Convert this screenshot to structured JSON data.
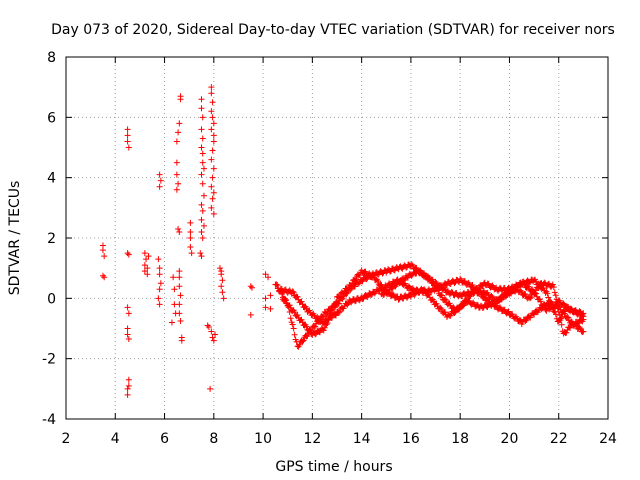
{
  "chart_data": {
    "type": "scatter",
    "title": "Day 073 of 2020, Sidereal Day-to-day VTEC variation (SDTVAR) for receiver nors",
    "xlabel": "GPS time / hours",
    "ylabel": "SDTVAR / TECUs",
    "xlim": [
      2,
      24
    ],
    "ylim": [
      -4,
      8
    ],
    "xticks": [
      2,
      4,
      6,
      8,
      10,
      12,
      14,
      16,
      18,
      20,
      22,
      24
    ],
    "yticks": [
      -4,
      -2,
      0,
      2,
      4,
      6,
      8
    ],
    "grid": true,
    "marker": "+",
    "color": "#ff0000",
    "series": [
      {
        "name": "scatter-points",
        "points": [
          [
            3.5,
            1.75
          ],
          [
            3.5,
            1.6
          ],
          [
            3.55,
            1.4
          ],
          [
            3.5,
            0.75
          ],
          [
            3.55,
            0.7
          ],
          [
            4.5,
            5.6
          ],
          [
            4.5,
            5.4
          ],
          [
            4.5,
            5.2
          ],
          [
            4.55,
            5.0
          ],
          [
            4.5,
            1.5
          ],
          [
            4.55,
            1.45
          ],
          [
            4.5,
            -0.3
          ],
          [
            4.55,
            -0.5
          ],
          [
            4.5,
            -1.0
          ],
          [
            4.5,
            -1.2
          ],
          [
            4.55,
            -1.35
          ],
          [
            4.55,
            -2.7
          ],
          [
            4.55,
            -2.9
          ],
          [
            4.5,
            -3.0
          ],
          [
            4.5,
            -3.2
          ],
          [
            5.2,
            1.5
          ],
          [
            5.25,
            1.3
          ],
          [
            5.2,
            1.1
          ],
          [
            5.3,
            1.0
          ],
          [
            5.2,
            0.9
          ],
          [
            5.35,
            1.4
          ],
          [
            5.3,
            0.8
          ],
          [
            5.8,
            4.1
          ],
          [
            5.85,
            3.9
          ],
          [
            5.8,
            3.7
          ],
          [
            5.75,
            1.3
          ],
          [
            5.8,
            1.0
          ],
          [
            5.8,
            0.8
          ],
          [
            5.85,
            0.5
          ],
          [
            5.8,
            0.3
          ],
          [
            5.75,
            0.0
          ],
          [
            5.8,
            -0.2
          ],
          [
            6.35,
            0.7
          ],
          [
            6.4,
            0.3
          ],
          [
            6.4,
            -0.2
          ],
          [
            6.45,
            -0.5
          ],
          [
            6.3,
            -0.8
          ],
          [
            6.5,
            4.5
          ],
          [
            6.5,
            4.1
          ],
          [
            6.55,
            3.8
          ],
          [
            6.5,
            3.6
          ],
          [
            6.6,
            5.8
          ],
          [
            6.55,
            5.5
          ],
          [
            6.5,
            5.2
          ],
          [
            6.65,
            6.7
          ],
          [
            6.65,
            6.6
          ],
          [
            6.6,
            2.2
          ],
          [
            6.55,
            2.3
          ],
          [
            6.6,
            0.9
          ],
          [
            6.6,
            0.7
          ],
          [
            6.6,
            0.4
          ],
          [
            6.65,
            0.1
          ],
          [
            6.6,
            -0.2
          ],
          [
            6.6,
            -0.5
          ],
          [
            6.65,
            -0.75
          ],
          [
            6.7,
            -1.3
          ],
          [
            6.7,
            -1.4
          ],
          [
            7.05,
            2.5
          ],
          [
            7.05,
            2.2
          ],
          [
            7.05,
            2.0
          ],
          [
            7.05,
            1.7
          ],
          [
            7.1,
            1.5
          ],
          [
            7.5,
            6.6
          ],
          [
            7.5,
            6.3
          ],
          [
            7.55,
            6.0
          ],
          [
            7.5,
            5.6
          ],
          [
            7.55,
            5.3
          ],
          [
            7.5,
            5.0
          ],
          [
            7.55,
            4.8
          ],
          [
            7.55,
            4.5
          ],
          [
            7.6,
            4.3
          ],
          [
            7.5,
            4.1
          ],
          [
            7.55,
            3.8
          ],
          [
            7.6,
            3.4
          ],
          [
            7.5,
            3.1
          ],
          [
            7.55,
            2.9
          ],
          [
            7.5,
            2.6
          ],
          [
            7.6,
            2.4
          ],
          [
            7.5,
            2.2
          ],
          [
            7.55,
            2.0
          ],
          [
            7.45,
            1.5
          ],
          [
            7.5,
            1.4
          ],
          [
            7.75,
            -0.9
          ],
          [
            7.8,
            -0.95
          ],
          [
            7.85,
            -3.0
          ],
          [
            7.9,
            7.0
          ],
          [
            7.9,
            6.8
          ],
          [
            7.95,
            6.5
          ],
          [
            7.9,
            6.2
          ],
          [
            7.95,
            6.0
          ],
          [
            8.0,
            5.8
          ],
          [
            7.9,
            5.6
          ],
          [
            8.0,
            5.4
          ],
          [
            8.0,
            5.2
          ],
          [
            7.95,
            4.9
          ],
          [
            7.9,
            4.6
          ],
          [
            8.0,
            4.3
          ],
          [
            7.95,
            4.0
          ],
          [
            7.9,
            3.7
          ],
          [
            8.0,
            3.5
          ],
          [
            7.95,
            3.3
          ],
          [
            7.9,
            3.0
          ],
          [
            8.0,
            2.8
          ],
          [
            7.9,
            -1.1
          ],
          [
            7.95,
            -1.3
          ],
          [
            8.0,
            -1.4
          ],
          [
            8.05,
            -1.2
          ],
          [
            8.25,
            1.0
          ],
          [
            8.3,
            0.8
          ],
          [
            8.35,
            0.6
          ],
          [
            8.3,
            0.4
          ],
          [
            8.35,
            0.2
          ],
          [
            8.4,
            0.0
          ],
          [
            8.3,
            0.9
          ],
          [
            9.5,
            0.4
          ],
          [
            9.55,
            0.35
          ],
          [
            9.5,
            -0.55
          ],
          [
            10.1,
            0.8
          ],
          [
            10.2,
            0.7
          ],
          [
            10.1,
            0.0
          ],
          [
            10.1,
            -0.3
          ],
          [
            10.3,
            0.1
          ],
          [
            10.3,
            -0.35
          ]
        ]
      },
      {
        "name": "track-1",
        "points": [
          [
            10.5,
            0.5
          ],
          [
            11.0,
            -0.2
          ],
          [
            11.4,
            -1.6
          ],
          [
            12.0,
            -1.0
          ],
          [
            12.5,
            -0.5
          ],
          [
            13.0,
            -0.2
          ],
          [
            13.5,
            0.3
          ],
          [
            14.0,
            0.6
          ],
          [
            14.5,
            0.8
          ],
          [
            15.0,
            0.9
          ],
          [
            15.5,
            1.0
          ],
          [
            16.0,
            1.1
          ],
          [
            16.5,
            0.8
          ],
          [
            17.0,
            0.5
          ],
          [
            17.5,
            0.2
          ],
          [
            18.0,
            0.1
          ],
          [
            18.5,
            0.2
          ],
          [
            19.0,
            0.2
          ],
          [
            19.5,
            -0.1
          ],
          [
            20.0,
            0.2
          ],
          [
            20.5,
            0.5
          ],
          [
            21.0,
            0.6
          ],
          [
            21.5,
            0.2
          ],
          [
            22.0,
            -0.8
          ],
          [
            22.3,
            -0.3
          ],
          [
            23.0,
            -0.6
          ]
        ]
      },
      {
        "name": "track-2",
        "points": [
          [
            10.6,
            0.3
          ],
          [
            11.2,
            0.2
          ],
          [
            11.8,
            -0.4
          ],
          [
            12.4,
            -0.8
          ],
          [
            13.0,
            -0.5
          ],
          [
            13.5,
            -0.1
          ],
          [
            14.0,
            0.0
          ],
          [
            14.5,
            0.2
          ],
          [
            15.0,
            0.4
          ],
          [
            15.5,
            0.6
          ],
          [
            16.0,
            0.3
          ],
          [
            16.5,
            0.2
          ],
          [
            17.0,
            0.3
          ],
          [
            17.5,
            0.5
          ],
          [
            18.0,
            0.6
          ],
          [
            18.5,
            0.4
          ],
          [
            19.0,
            0.0
          ],
          [
            19.5,
            -0.3
          ],
          [
            20.0,
            -0.5
          ],
          [
            20.5,
            -0.8
          ],
          [
            21.0,
            -0.5
          ],
          [
            21.5,
            -0.2
          ],
          [
            22.0,
            -0.3
          ],
          [
            22.5,
            -0.8
          ],
          [
            23.0,
            -1.1
          ]
        ]
      },
      {
        "name": "track-3",
        "points": [
          [
            10.8,
            0.0
          ],
          [
            11.4,
            -0.6
          ],
          [
            12.0,
            -1.2
          ],
          [
            12.5,
            -1.0
          ],
          [
            13.0,
            0.0
          ],
          [
            13.5,
            0.4
          ],
          [
            14.0,
            0.9
          ],
          [
            14.5,
            0.7
          ],
          [
            15.0,
            0.2
          ],
          [
            15.5,
            0.0
          ],
          [
            16.0,
            0.1
          ],
          [
            16.5,
            0.3
          ],
          [
            17.0,
            -0.2
          ],
          [
            17.5,
            -0.6
          ],
          [
            18.0,
            -0.3
          ],
          [
            18.5,
            0.2
          ],
          [
            19.0,
            0.5
          ],
          [
            19.5,
            0.3
          ],
          [
            20.0,
            0.3
          ],
          [
            20.5,
            0.5
          ],
          [
            21.0,
            0.2
          ],
          [
            21.5,
            -0.4
          ],
          [
            22.0,
            -0.1
          ],
          [
            22.5,
            -0.4
          ],
          [
            23.0,
            -0.5
          ]
        ]
      },
      {
        "name": "track-4",
        "points": [
          [
            14.8,
            0.1
          ],
          [
            15.3,
            0.4
          ],
          [
            15.8,
            0.7
          ],
          [
            16.3,
            0.9
          ],
          [
            16.8,
            0.6
          ],
          [
            17.3,
            0.0
          ],
          [
            17.8,
            -0.4
          ],
          [
            18.3,
            -0.1
          ],
          [
            18.8,
            -0.3
          ],
          [
            19.3,
            -0.2
          ],
          [
            19.8,
            0.1
          ],
          [
            20.3,
            0.3
          ],
          [
            20.8,
            0.0
          ],
          [
            21.3,
            0.5
          ],
          [
            21.8,
            0.4
          ],
          [
            22.2,
            -1.2
          ],
          [
            22.5,
            -0.9
          ],
          [
            23.0,
            -0.7
          ]
        ]
      }
    ]
  }
}
